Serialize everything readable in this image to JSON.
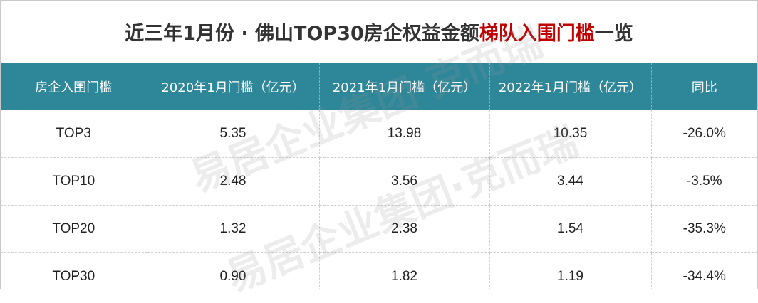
{
  "header": {
    "title_start": "近三年1月份 · 佛山TOP30房企权益金额",
    "title_highlight": "梯队入围门槛",
    "title_end": "一览"
  },
  "table": {
    "columns": [
      "房企入围门槛",
      "2020年1月门槛（亿元）",
      "2021年1月门槛（亿元）",
      "2022年1月门槛（亿元）",
      "同比"
    ],
    "rows": [
      [
        "TOP3",
        "5.35",
        "13.98",
        "10.35",
        "-26.0%"
      ],
      [
        "TOP10",
        "2.48",
        "3.56",
        "3.44",
        "-3.5%"
      ],
      [
        "TOP20",
        "1.32",
        "2.38",
        "1.54",
        "-35.3%"
      ],
      [
        "TOP30",
        "0.90",
        "1.82",
        "1.19",
        "-34.4%"
      ]
    ]
  },
  "watermark": "易居企业集团·克而瑞"
}
